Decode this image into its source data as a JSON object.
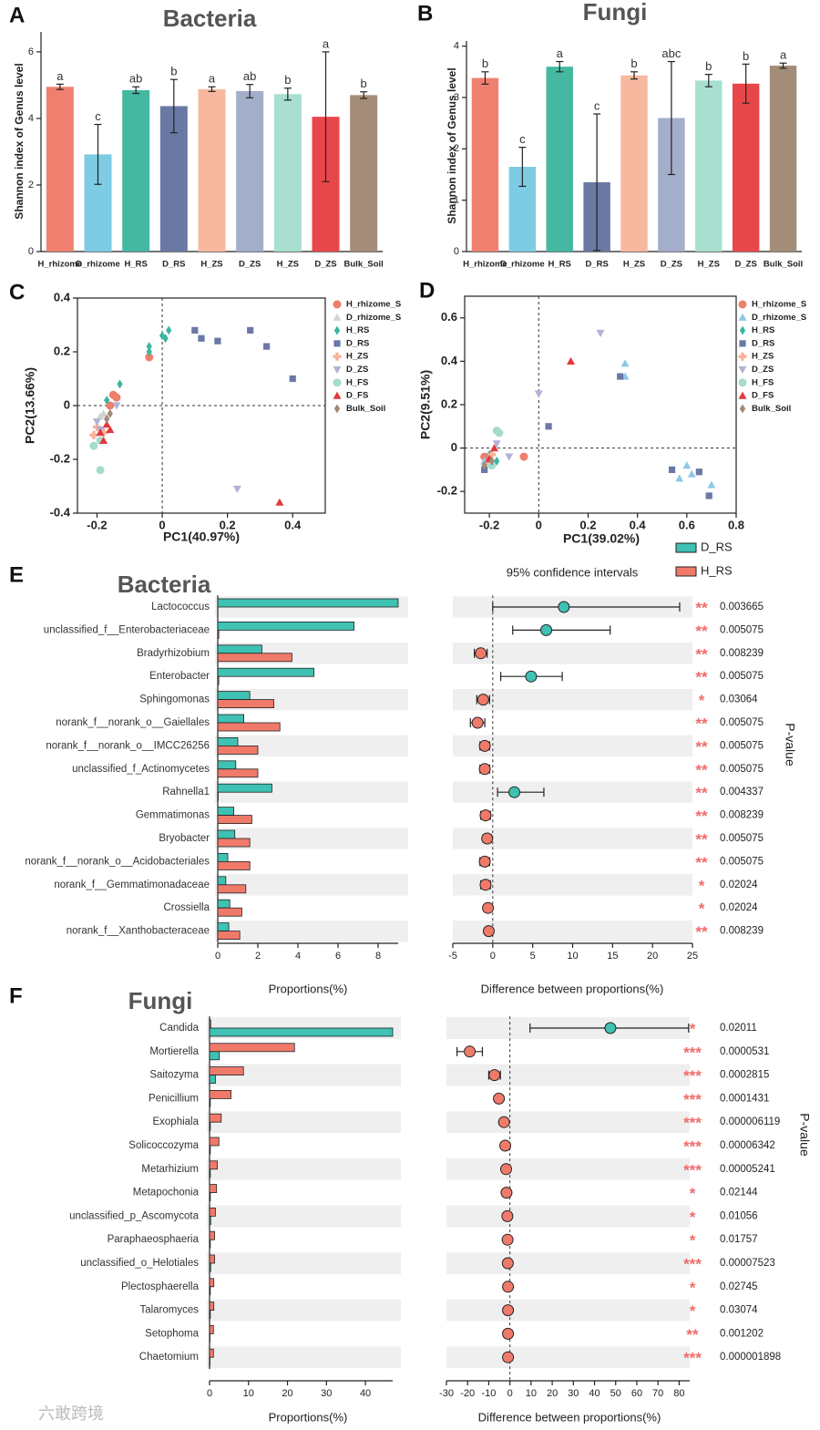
{
  "chart_data": [
    {
      "type": "bar",
      "panel_label": "A",
      "title": "Bacteria",
      "y_label": "Shannon index of Genus level",
      "categories": [
        "H_rhizome",
        "D_rhizome",
        "H_RS",
        "D_RS",
        "H_ZS",
        "D_ZS",
        "H_ZS",
        "D_ZS",
        "Bulk_Soil"
      ],
      "values": [
        4.95,
        2.92,
        4.85,
        4.37,
        4.88,
        4.82,
        4.73,
        4.05,
        4.7
      ],
      "errors": [
        0.08,
        0.9,
        0.1,
        0.8,
        0.07,
        0.2,
        0.18,
        1.95,
        0.1
      ],
      "annotations": [
        "a",
        "c",
        "ab",
        "b",
        "a",
        "ab",
        "b",
        "a",
        "b"
      ],
      "colors": [
        "#ef8070",
        "#7ecbe4",
        "#45b8a2",
        "#6a79a3",
        "#f8b8a0",
        "#a3aecb",
        "#a8dfd0",
        "#e8474a",
        "#a48d78"
      ],
      "ylim": [
        0,
        6.6
      ],
      "yticks": [
        0,
        2,
        4,
        6
      ]
    },
    {
      "type": "bar",
      "panel_label": "B",
      "title": "Fungi",
      "y_label": "Shannon index of Genus level",
      "categories": [
        "H_rhizome",
        "D_rhizome",
        "H_RS",
        "D_RS",
        "H_ZS",
        "D_ZS",
        "H_ZS",
        "D_ZS",
        "Bulk_Soil"
      ],
      "values": [
        3.38,
        1.65,
        3.6,
        1.35,
        3.43,
        2.6,
        3.33,
        3.27,
        3.62
      ],
      "errors": [
        0.12,
        0.38,
        0.1,
        1.33,
        0.07,
        1.1,
        0.12,
        0.38,
        0.05
      ],
      "annotations": [
        "b",
        "c",
        "a",
        "c",
        "b",
        "abc",
        "b",
        "b",
        "a"
      ],
      "colors": [
        "#ef8070",
        "#7ecbe4",
        "#45b8a2",
        "#6a79a3",
        "#f8b8a0",
        "#a3aecb",
        "#a8dfd0",
        "#e8474a",
        "#a48d78"
      ],
      "ylim": [
        0,
        4.1
      ],
      "yticks": [
        0,
        1,
        2,
        3,
        4
      ]
    },
    {
      "type": "scatter",
      "panel_label": "C",
      "x_label": "PC1(40.97%)",
      "y_label": "PC2(13.66%)",
      "xlim": [
        -0.26,
        0.5
      ],
      "xticks": [
        -0.2,
        0,
        0.2,
        0.4
      ],
      "ylim": [
        -0.4,
        0.4
      ],
      "yticks": [
        -0.4,
        -0.2,
        0,
        0.2,
        0.4
      ],
      "series": [
        {
          "name": "H_rhizome_S",
          "color": "#ee7f6a",
          "marker": "circle",
          "x": [
            -0.04,
            -0.15,
            -0.14,
            -0.16
          ],
          "y": [
            0.18,
            0.04,
            0.03,
            0
          ]
        },
        {
          "name": "D_rhizome_S",
          "color": "#d3d3d3",
          "marker": "triangle",
          "x": [
            -0.19,
            -0.18
          ],
          "y": [
            -0.04,
            -0.03
          ]
        },
        {
          "name": "H_RS",
          "color": "#3bb5a0",
          "marker": "diamond",
          "x": [
            -0.04,
            -0.04,
            0,
            0.02,
            0.01,
            -0.13,
            -0.17
          ],
          "y": [
            0.22,
            0.2,
            0.26,
            0.28,
            0.25,
            0.08,
            0.02
          ]
        },
        {
          "name": "D_RS",
          "color": "#6b78a6",
          "marker": "square",
          "x": [
            0.1,
            0.12,
            0.17,
            0.27,
            0.32,
            0.4
          ],
          "y": [
            0.28,
            0.25,
            0.24,
            0.28,
            0.22,
            0.1
          ]
        },
        {
          "name": "H_ZS",
          "color": "#f9b19a",
          "marker": "plus",
          "x": [
            -0.2,
            -0.18,
            -0.21
          ],
          "y": [
            -0.08,
            -0.1,
            -0.11
          ]
        },
        {
          "name": "D_ZS",
          "color": "#b0b3d6",
          "marker": "triangle-down",
          "x": [
            -0.2,
            -0.14,
            0.23,
            -0.19
          ],
          "y": [
            -0.06,
            0,
            -0.31,
            -0.09
          ]
        },
        {
          "name": "H_FS",
          "color": "#a6dccb",
          "marker": "circle",
          "x": [
            -0.19,
            -0.21,
            -0.19
          ],
          "y": [
            -0.24,
            -0.15,
            -0.13
          ]
        },
        {
          "name": "D_FS",
          "color": "#e0393e",
          "marker": "triangle",
          "x": [
            0.36,
            -0.18,
            -0.17,
            -0.19,
            -0.16
          ],
          "y": [
            -0.36,
            -0.13,
            -0.07,
            -0.1,
            -0.09
          ]
        },
        {
          "name": "Bulk_Soil",
          "color": "#a08a78",
          "marker": "diamond",
          "x": [
            -0.17,
            -0.16
          ],
          "y": [
            -0.05,
            -0.03
          ]
        }
      ]
    },
    {
      "type": "scatter",
      "panel_label": "D",
      "x_label": "PC1(39.02%)",
      "y_label": "PC2(9.51%)",
      "xlim": [
        -0.3,
        0.8
      ],
      "xticks": [
        -0.2,
        0,
        0.2,
        0.4,
        0.6,
        0.8
      ],
      "ylim": [
        -0.3,
        0.7
      ],
      "yticks": [
        -0.2,
        0,
        0.2,
        0.4,
        0.6
      ],
      "series": [
        {
          "name": "H_rhizome_S",
          "color": "#ee7f6a",
          "marker": "circle",
          "x": [
            -0.06,
            -0.22
          ],
          "y": [
            -0.04,
            -0.04
          ]
        },
        {
          "name": "D_rhizome_S",
          "color": "#8fc9e6",
          "marker": "triangle",
          "x": [
            0.35,
            0.35,
            0.6,
            0.57,
            0.62,
            0.7,
            -0.22
          ],
          "y": [
            0.39,
            0.33,
            -0.08,
            -0.14,
            -0.12,
            -0.17,
            -0.06
          ]
        },
        {
          "name": "H_RS",
          "color": "#3bb5a0",
          "marker": "diamond",
          "x": [
            -0.17,
            -0.2
          ],
          "y": [
            -0.06,
            -0.03
          ]
        },
        {
          "name": "D_RS",
          "color": "#6b78a6",
          "marker": "square",
          "x": [
            0.33,
            0.04,
            0.54,
            0.65,
            0.69,
            -0.22
          ],
          "y": [
            0.33,
            0.1,
            -0.1,
            -0.11,
            -0.22,
            -0.1
          ]
        },
        {
          "name": "H_ZS",
          "color": "#f9b19a",
          "marker": "plus",
          "x": [
            -0.19,
            -0.2
          ],
          "y": [
            -0.03,
            -0.07
          ]
        },
        {
          "name": "D_ZS",
          "color": "#b0b3d6",
          "marker": "triangle-down",
          "x": [
            0.25,
            0,
            -0.17,
            -0.12
          ],
          "y": [
            0.53,
            0.25,
            0.02,
            -0.04
          ]
        },
        {
          "name": "H_FS",
          "color": "#a6dccb",
          "marker": "circle",
          "x": [
            -0.17,
            -0.16,
            -0.19
          ],
          "y": [
            0.08,
            0.07,
            -0.08
          ]
        },
        {
          "name": "D_FS",
          "color": "#e0393e",
          "marker": "triangle",
          "x": [
            0.13,
            -0.18,
            -0.2
          ],
          "y": [
            0.4,
            0,
            -0.05
          ]
        },
        {
          "name": "Bulk_Soil",
          "color": "#a08a78",
          "marker": "diamond",
          "x": [
            -0.22,
            -0.19
          ],
          "y": [
            -0.08,
            -0.06
          ]
        }
      ]
    },
    {
      "type": "extended_error_bar",
      "panel_label": "E",
      "title": "Bacteria",
      "ci_label": "95% confidence intervals",
      "x_label": "Proportions(%)",
      "diff_x_label": "Difference between proportions(%)",
      "p_label": "P-value",
      "categories": [
        "Lactococcus",
        "unclassified_f__Enterobacteriaceae",
        "Bradyrhizobium",
        "Enterobacter",
        "Sphingomonas",
        "norank_f__norank_o__Gaiellales",
        "norank_f__norank_o__IMCC26256",
        "unclassified_f_Actinomycetes",
        "Rahnella1",
        "Gemmatimonas",
        "Bryobacter",
        "norank_f__norank_o__Acidobacteriales",
        "norank_f__Gemmatimonadaceae",
        "Crossiella",
        "norank_f__Xanthobacteraceae"
      ],
      "series": [
        {
          "name": "D_RS",
          "color": "#3fc1b3",
          "values": [
            9.0,
            6.8,
            2.2,
            4.8,
            1.6,
            1.3,
            1.0,
            0.9,
            2.7,
            0.8,
            0.85,
            0.5,
            0.4,
            0.6,
            0.55
          ]
        },
        {
          "name": "H_RS",
          "color": "#f07a6a",
          "values": [
            0,
            0.05,
            3.7,
            0.05,
            2.8,
            3.1,
            2.0,
            2.0,
            0.02,
            1.7,
            1.6,
            1.6,
            1.4,
            1.2,
            1.1
          ]
        }
      ],
      "difference": {
        "values": [
          8.9,
          6.7,
          -1.5,
          4.8,
          -1.2,
          -1.9,
          -1.0,
          -1.0,
          2.7,
          -0.9,
          -0.7,
          -1.0,
          -0.9,
          -0.6,
          -0.5
        ],
        "lower": [
          0.0,
          2.5,
          -2.3,
          1.0,
          -2.0,
          -2.8,
          -1.6,
          -1.6,
          0.6,
          -1.5,
          -1.2,
          -1.6,
          -1.5,
          -1.0,
          -0.9
        ],
        "upper": [
          23.4,
          14.7,
          -0.7,
          8.7,
          -0.4,
          -1.0,
          -0.4,
          -0.4,
          6.4,
          -0.3,
          -0.2,
          -0.4,
          -0.3,
          -0.2,
          -0.1
        ]
      },
      "p_values": [
        0.003665,
        0.005075,
        0.008239,
        0.005075,
        0.03064,
        0.005075,
        0.005075,
        0.005075,
        0.004337,
        0.008239,
        0.005075,
        0.005075,
        0.02024,
        0.02024,
        0.008239
      ],
      "significance": [
        "**",
        "**",
        "**",
        "**",
        "*",
        "**",
        "**",
        "**",
        "**",
        "**",
        "**",
        "**",
        "*",
        "*",
        "**"
      ],
      "xlim": [
        0,
        9
      ],
      "xticks": [
        0,
        2,
        4,
        6,
        8
      ],
      "diff_xlim": [
        -5,
        25
      ],
      "diff_xticks": [
        -5,
        0,
        5,
        10,
        15,
        20,
        25
      ]
    },
    {
      "type": "extended_error_bar",
      "panel_label": "F",
      "title": "Fungi",
      "x_label": "Proportions(%)",
      "diff_x_label": "Difference between proportions(%)",
      "p_label": "P-value",
      "categories": [
        "Candida",
        "Mortierella",
        "Saitozyma",
        "Penicillium",
        "Exophiala",
        "Solicoccozyma",
        "Metarhizium",
        "Metapochonia",
        "unclassified_p_Ascomycota",
        "Paraphaeosphaeria",
        "unclassified_o_Helotiales",
        "Plectosphaerella",
        "Talaromyces",
        "Setophoma",
        "Chaetomium"
      ],
      "series": [
        {
          "color": "#f07a6a",
          "values": [
            0.3,
            21.8,
            8.7,
            5.5,
            3.0,
            2.4,
            2.0,
            1.8,
            1.5,
            1.3,
            1.3,
            1.1,
            1.1,
            1.0,
            1.0
          ]
        },
        {
          "color": "#3fc1b3",
          "values": [
            47,
            2.5,
            1.5,
            0.2,
            0.2,
            0.2,
            0.2,
            0.2,
            0.3,
            0.2,
            0.3,
            0.2,
            0.2,
            0.1,
            0.1
          ]
        }
      ],
      "difference": {
        "values": [
          47.5,
          -19.0,
          -7.3,
          -5.2,
          -2.8,
          -2.2,
          -1.8,
          -1.6,
          -1.2,
          -1.1,
          -1.0,
          -0.9,
          -0.9,
          -0.9,
          -0.9
        ],
        "lower": [
          9.5,
          -25,
          -10,
          -6.5,
          -3.5,
          -2.9,
          -2.5,
          -2.4,
          -1.9,
          -1.7,
          -1.5,
          -1.5,
          -1.5,
          -1.3,
          -1.3
        ],
        "upper": [
          84.5,
          -13,
          -4.5,
          -3.8,
          -2.1,
          -1.5,
          -1.1,
          -0.8,
          -0.5,
          -0.5,
          -0.5,
          -0.3,
          -0.3,
          -0.5,
          -0.5
        ]
      },
      "p_values": [
        0.02011,
        5.31e-05,
        0.0002815,
        0.0001431,
        6.119e-06,
        6.342e-05,
        5.241e-05,
        0.02144,
        0.01056,
        0.01757,
        7.523e-05,
        0.02745,
        0.03074,
        0.001202,
        1.898e-06
      ],
      "significance": [
        "*",
        "***",
        "***",
        "***",
        "***",
        "***",
        "***",
        "*",
        "*",
        "*",
        "***",
        "*",
        "*",
        "**",
        "***"
      ],
      "xlim": [
        0,
        47
      ],
      "xticks": [
        0,
        10,
        20,
        30,
        40
      ],
      "diff_xlim": [
        -30,
        85
      ],
      "diff_xticks": [
        -30,
        -20,
        -10,
        0,
        10,
        20,
        30,
        40,
        50,
        60,
        70,
        80
      ]
    }
  ],
  "watermark": "六敢跨境"
}
